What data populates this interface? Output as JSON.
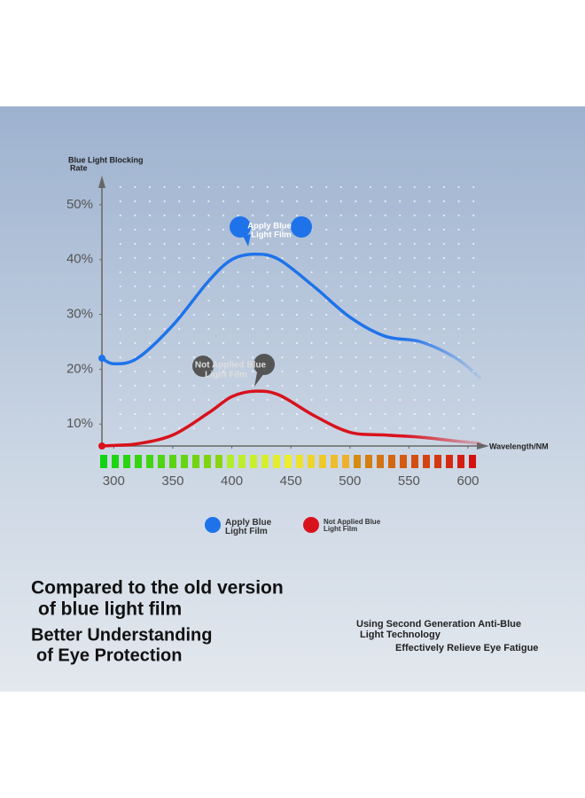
{
  "chart_data": {
    "type": "line",
    "y_title": [
      "Blue Light Blocking",
      "Rate"
    ],
    "x_title": "Wavelength/NM",
    "annotations": [
      [
        "Apply Blue",
        "Light Film"
      ],
      [
        "Not Applied Blue",
        "Light Film"
      ]
    ],
    "x": [
      290,
      300,
      320,
      350,
      380,
      400,
      420,
      440,
      470,
      500,
      530,
      560,
      590,
      610
    ],
    "series": [
      {
        "name": "Apply Blue Light Film",
        "color": "#1f73ea",
        "values": [
          22,
          21,
          22,
          28,
          36,
          40,
          41,
          40,
          35,
          29.5,
          26,
          25,
          22,
          18.5
        ]
      },
      {
        "name": "Not Applied Blue Light Film",
        "color": "#d8121c",
        "values": [
          6,
          6.1,
          6.4,
          8,
          12,
          15,
          16,
          15.3,
          11.5,
          8.5,
          8,
          7.6,
          6.9,
          6.5
        ]
      }
    ],
    "xlim": [
      290,
      615
    ],
    "xticks": [
      300,
      350,
      400,
      450,
      500,
      550,
      600
    ],
    "ylim": [
      6,
      55
    ],
    "yticks": [
      {
        "value": 10,
        "label": "10%"
      },
      {
        "value": 20,
        "label": "20%"
      },
      {
        "value": 30,
        "label": "30%"
      },
      {
        "value": 40,
        "label": "40%"
      },
      {
        "value": 50,
        "label": "50%"
      }
    ],
    "grid": false,
    "legend": "bottom"
  },
  "caption": {
    "headline": [
      "Compared to the old version",
      "of blue light film"
    ],
    "subhead": [
      "Better Understanding",
      "of Eye Protection"
    ],
    "notes": [
      "Using Second Generation Anti-Blue",
      "Light Technology",
      "Effectively Relieve Eye Fatigue"
    ]
  }
}
